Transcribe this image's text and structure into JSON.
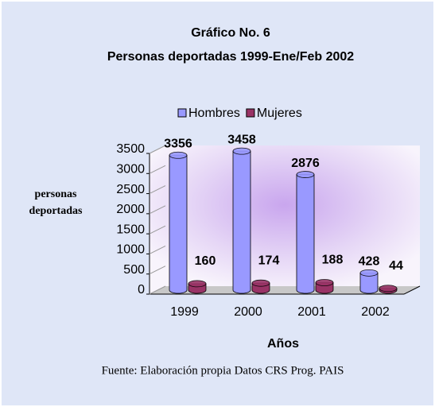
{
  "chart_data": {
    "type": "bar3d",
    "title": "Gráfico No. 6",
    "subtitle": "Personas deportadas 1999-Ene/Feb 2002",
    "y_label": "personas deportadas",
    "x_label": "Años",
    "source": "Fuente: Elaboración propia Datos CRS Prog. PAIS",
    "categories": [
      "1999",
      "2000",
      "2001",
      "2002"
    ],
    "series": [
      {
        "name": "Hombres",
        "color": "#9999ff",
        "values": [
          3356,
          3458,
          2876,
          428
        ]
      },
      {
        "name": "Mujeres",
        "color": "#993366",
        "values": [
          160,
          174,
          188,
          44
        ]
      }
    ],
    "ylim": [
      0,
      3500
    ],
    "yticks": [
      0,
      500,
      1000,
      1500,
      2000,
      2500,
      3000,
      3500
    ],
    "legend": "top"
  }
}
